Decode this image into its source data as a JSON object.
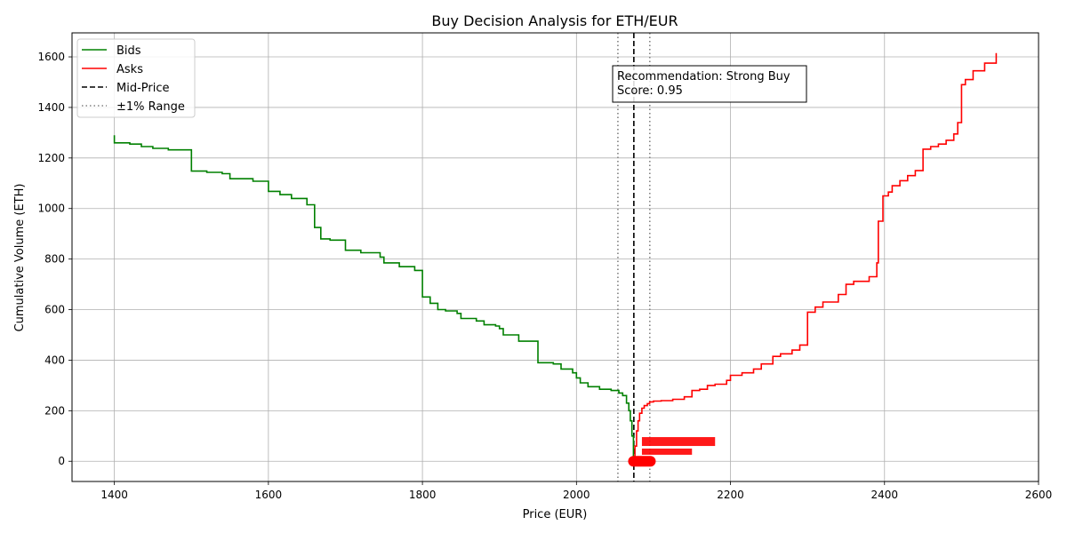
{
  "chart_data": {
    "type": "line",
    "title": "Buy Decision Analysis for ETH/EUR",
    "xlabel": "Price (EUR)",
    "ylabel": "Cumulative Volume (ETH)",
    "xlim": [
      1345,
      2600
    ],
    "ylim": [
      -80,
      1695
    ],
    "xticks": [
      1400,
      1600,
      1800,
      2000,
      2200,
      2400,
      2600
    ],
    "yticks": [
      0,
      200,
      400,
      600,
      800,
      1000,
      1200,
      1400,
      1600
    ],
    "grid": true,
    "legend_position": "top-left",
    "colors": {
      "bids": "#008000",
      "asks": "#ff0000",
      "mid": "#000000",
      "range": "#808080"
    },
    "series": [
      {
        "name": "Bids",
        "style": "step",
        "x": [
          1400,
          1400,
          1420,
          1435,
          1450,
          1470,
          1500,
          1500,
          1520,
          1540,
          1550,
          1580,
          1600,
          1600,
          1615,
          1630,
          1650,
          1660,
          1660,
          1668,
          1680,
          1700,
          1700,
          1720,
          1745,
          1750,
          1770,
          1790,
          1800,
          1800,
          1810,
          1820,
          1830,
          1845,
          1850,
          1870,
          1880,
          1895,
          1900,
          1905,
          1925,
          1950,
          1950,
          1970,
          1980,
          1995,
          2000,
          2005,
          2015,
          2030,
          2045,
          2055,
          2060,
          2065,
          2068,
          2070,
          2072,
          2074
        ],
        "y": [
          1290,
          1260,
          1255,
          1245,
          1238,
          1232,
          1225,
          1148,
          1143,
          1138,
          1118,
          1108,
          1098,
          1068,
          1055,
          1040,
          1015,
          990,
          925,
          880,
          875,
          865,
          835,
          825,
          808,
          785,
          770,
          755,
          740,
          650,
          625,
          600,
          595,
          585,
          565,
          555,
          540,
          535,
          525,
          500,
          475,
          450,
          390,
          385,
          365,
          350,
          330,
          310,
          295,
          285,
          280,
          270,
          260,
          230,
          200,
          160,
          100,
          0
        ]
      },
      {
        "name": "Asks",
        "style": "step",
        "x": [
          2075,
          2076,
          2078,
          2080,
          2082,
          2085,
          2088,
          2092,
          2095,
          2100,
          2110,
          2125,
          2140,
          2150,
          2160,
          2170,
          2180,
          2195,
          2200,
          2215,
          2230,
          2240,
          2255,
          2265,
          2280,
          2290,
          2300,
          2300,
          2310,
          2320,
          2340,
          2350,
          2360,
          2380,
          2390,
          2392,
          2398,
          2398,
          2405,
          2410,
          2420,
          2430,
          2440,
          2450,
          2450,
          2460,
          2470,
          2480,
          2490,
          2495,
          2500,
          2500,
          2505,
          2515,
          2530,
          2545
        ],
        "y": [
          0,
          60,
          120,
          160,
          190,
          210,
          220,
          228,
          235,
          238,
          240,
          245,
          255,
          280,
          285,
          300,
          305,
          320,
          340,
          350,
          365,
          385,
          415,
          425,
          440,
          460,
          475,
          590,
          610,
          630,
          660,
          700,
          712,
          730,
          785,
          950,
          965,
          1050,
          1065,
          1090,
          1110,
          1130,
          1150,
          1155,
          1235,
          1245,
          1255,
          1270,
          1295,
          1340,
          1460,
          1490,
          1510,
          1545,
          1575,
          1615
        ]
      }
    ],
    "vlines": [
      {
        "name": "Mid-Price",
        "x": 2074.5,
        "style": "dashed"
      },
      {
        "name": "±1% Range",
        "x": 2053.8,
        "style": "dotted"
      },
      {
        "name": "±1% Range",
        "x": 2095.2,
        "style": "dotted"
      }
    ],
    "legend": [
      "Bids",
      "Asks",
      "Mid-Price",
      "±1% Range"
    ],
    "annotation": {
      "line1": "Recommendation: Strong Buy",
      "line2": "Score: 0.95",
      "x": 2062,
      "y": 1470
    },
    "marker_cluster": {
      "color": "#ff0000",
      "points_x": [
        2074,
        2076,
        2078,
        2080,
        2082,
        2084,
        2086,
        2088,
        2090,
        2092,
        2094,
        2096
      ],
      "points_y": 0,
      "label_row1": {
        "x_start": 2085,
        "x_end": 2180,
        "y": 78
      },
      "label_row2": {
        "x_start": 2085,
        "x_end": 2150,
        "y": 38
      }
    }
  }
}
